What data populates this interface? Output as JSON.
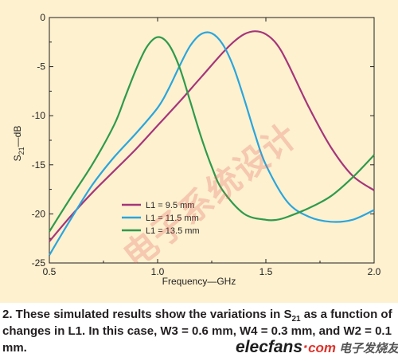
{
  "chart_data": {
    "type": "line",
    "xlabel": "Frequency—GHz",
    "ylabel_main": "S",
    "ylabel_sub": "21",
    "ylabel_tail": "—dB",
    "xlim": [
      0.5,
      2.0
    ],
    "ylim": [
      -25,
      0
    ],
    "xticks": [
      "0.5",
      "1.0",
      "1.5",
      "2.0"
    ],
    "yticks": [
      "0",
      "-5",
      "-10",
      "-15",
      "-20",
      "-25"
    ],
    "grid": false,
    "legend_position": "bottom-left",
    "series": [
      {
        "name": "L1 = 9.5 mm",
        "color": "#a6357a",
        "x": [
          0.5,
          0.6,
          0.7,
          0.8,
          0.9,
          1.0,
          1.1,
          1.2,
          1.3,
          1.35,
          1.4,
          1.45,
          1.5,
          1.55,
          1.6,
          1.7,
          1.8,
          1.9,
          2.0
        ],
        "y": [
          -22.8,
          -20.2,
          -17.8,
          -15.6,
          -13.4,
          -11.0,
          -8.6,
          -6.1,
          -3.6,
          -2.5,
          -1.7,
          -1.4,
          -1.7,
          -2.7,
          -4.6,
          -9.2,
          -13.2,
          -16.1,
          -17.6
        ]
      },
      {
        "name": "L1 = 11.5 mm",
        "color": "#2aa5dd",
        "x": [
          0.5,
          0.6,
          0.7,
          0.8,
          0.9,
          1.0,
          1.05,
          1.1,
          1.15,
          1.2,
          1.25,
          1.3,
          1.35,
          1.4,
          1.45,
          1.5,
          1.6,
          1.7,
          1.8,
          1.9,
          2.0
        ],
        "y": [
          -24.2,
          -20.5,
          -17.0,
          -14.2,
          -11.8,
          -9.2,
          -7.3,
          -5.0,
          -2.9,
          -1.7,
          -1.6,
          -2.7,
          -5.0,
          -8.3,
          -11.9,
          -15.0,
          -18.8,
          -20.3,
          -20.8,
          -20.6,
          -19.6
        ]
      },
      {
        "name": "L1 = 13.5 mm",
        "color": "#2f9a4b",
        "x": [
          0.5,
          0.6,
          0.7,
          0.8,
          0.85,
          0.9,
          0.95,
          1.0,
          1.05,
          1.1,
          1.15,
          1.2,
          1.25,
          1.3,
          1.4,
          1.5,
          1.55,
          1.6,
          1.7,
          1.8,
          1.9,
          2.0
        ],
        "y": [
          -21.8,
          -18.3,
          -14.9,
          -10.9,
          -8.1,
          -5.3,
          -3.0,
          -2.0,
          -2.7,
          -5.0,
          -8.5,
          -12.1,
          -15.2,
          -17.6,
          -20.0,
          -20.6,
          -20.6,
          -20.3,
          -19.4,
          -18.2,
          -16.3,
          -14.0
        ]
      }
    ]
  },
  "caption": {
    "part1": "2. These simulated results show the variations in S",
    "sub": "21",
    "part2": " as a function of changes in L1. In this case, W3 = 0.6 mm, W4 = 0.3 mm, and W2 = 0.1 mm."
  },
  "watermark": {
    "chinese": "电子系统设计",
    "logo_main": "elecfans",
    "logo_dot": "·",
    "logo_com": "com",
    "logo_cn": "电子发烧友"
  },
  "colors": {
    "panel": "#fdf1cf",
    "axis": "#231f20"
  }
}
